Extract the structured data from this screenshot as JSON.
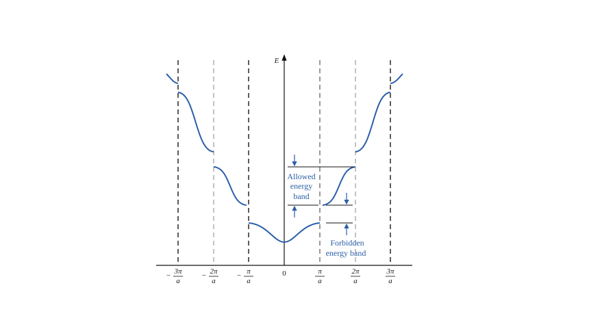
{
  "axis": {
    "label": "E",
    "origin": "0"
  },
  "ticks": [
    {
      "sign": "−",
      "numerator": "3π",
      "denominator": "a"
    },
    {
      "sign": "−",
      "numerator": "2π",
      "denominator": "a"
    },
    {
      "sign": "−",
      "numerator": "π",
      "denominator": "a"
    },
    {
      "numerator": "π",
      "denominator": "a"
    },
    {
      "numerator": "2π",
      "denominator": "a"
    },
    {
      "numerator": "3π",
      "denominator": "a"
    }
  ],
  "annotations": {
    "allowed": [
      "Allowed",
      "energy",
      "band"
    ],
    "forbidden": [
      "Forbidden",
      "energy band"
    ]
  }
}
